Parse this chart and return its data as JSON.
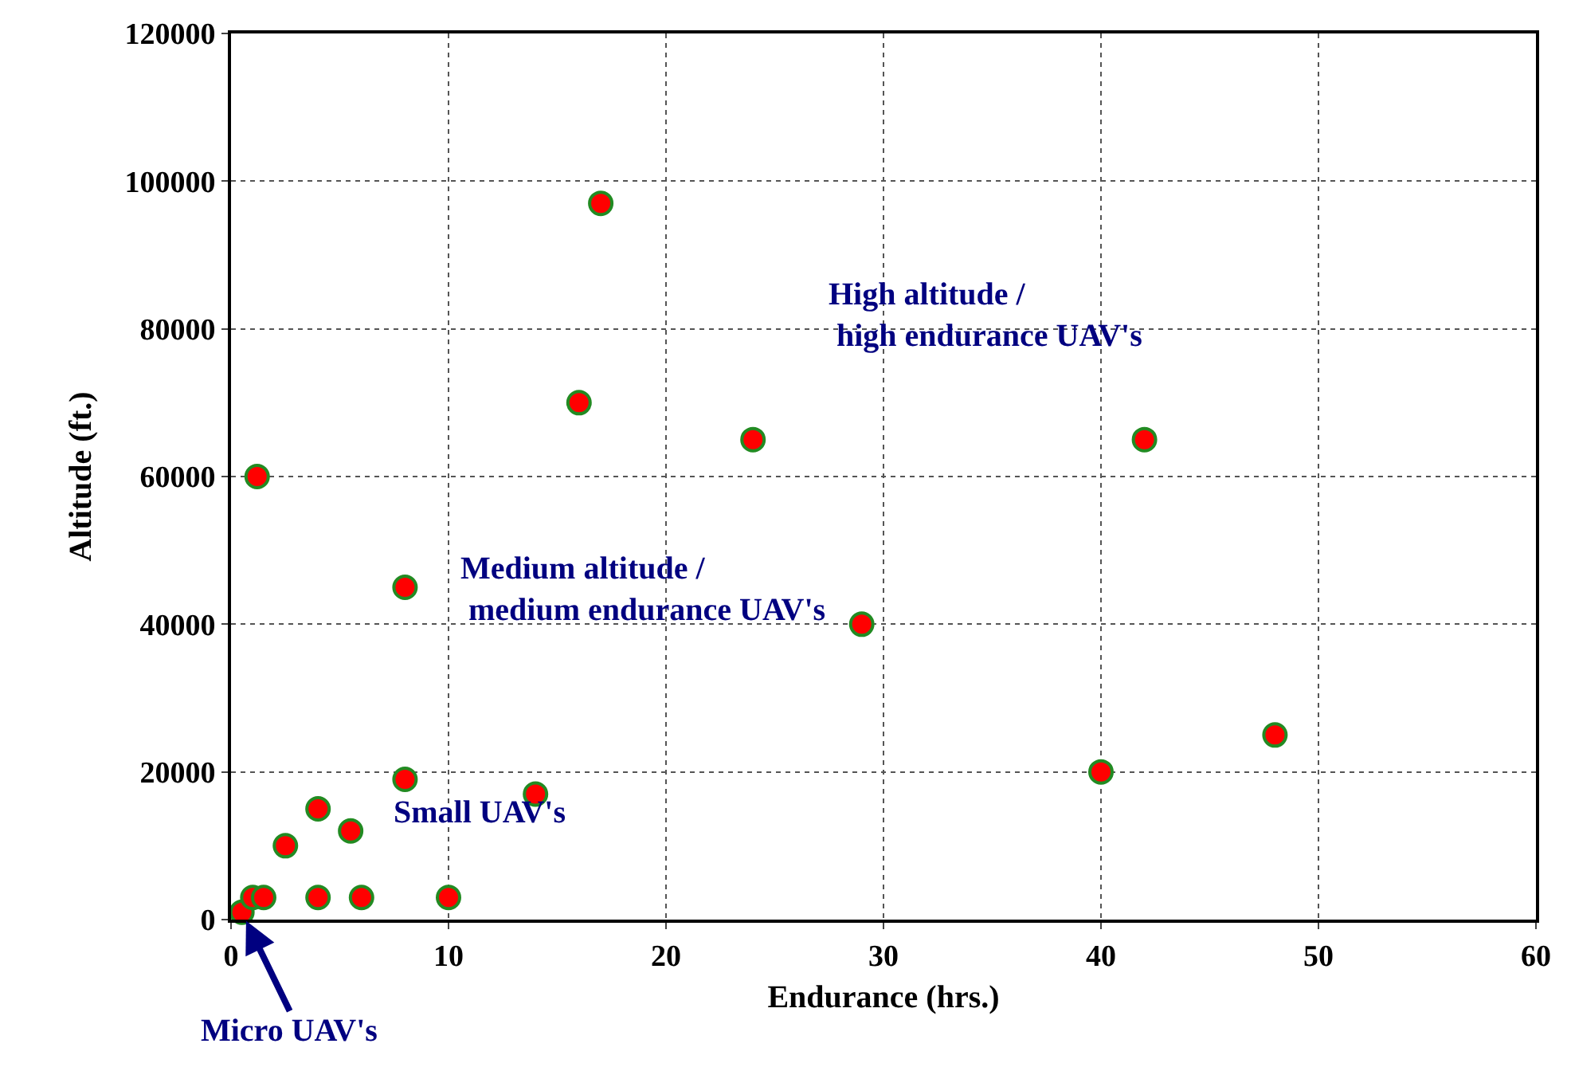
{
  "chart_data": {
    "type": "scatter",
    "xlabel": "Endurance (hrs.)",
    "ylabel": "Altitude (ft.)",
    "x": [
      0.5,
      1,
      1.5,
      1.2,
      2.5,
      4,
      4,
      5.5,
      6,
      8,
      8,
      10,
      14,
      16,
      17,
      24,
      29,
      40,
      42,
      48
    ],
    "series": [
      {
        "color": "#ff0000",
        "values": [
          1000,
          3000,
          3000,
          60000,
          10000,
          15000,
          3000,
          12000,
          3000,
          19000,
          45000,
          3000,
          17000,
          70000,
          97000,
          65000,
          40000,
          20000,
          65000,
          25000
        ]
      }
    ],
    "marker": "circle",
    "grid": true,
    "legend": false,
    "xlim": [
      0,
      60
    ],
    "xticks": [
      0,
      10,
      20,
      30,
      40,
      50,
      60
    ],
    "ylim": [
      0,
      120000
    ],
    "yticks": [
      0,
      20000,
      40000,
      60000,
      80000,
      100000,
      120000
    ],
    "annotations": [
      {
        "text": "Micro UAV's",
        "x": 0.5,
        "y": 1000
      },
      "Small UAV's",
      "Medium altitude /\n medium endurance UAV's",
      "High altitude /\n high endurance UAV's"
    ]
  }
}
